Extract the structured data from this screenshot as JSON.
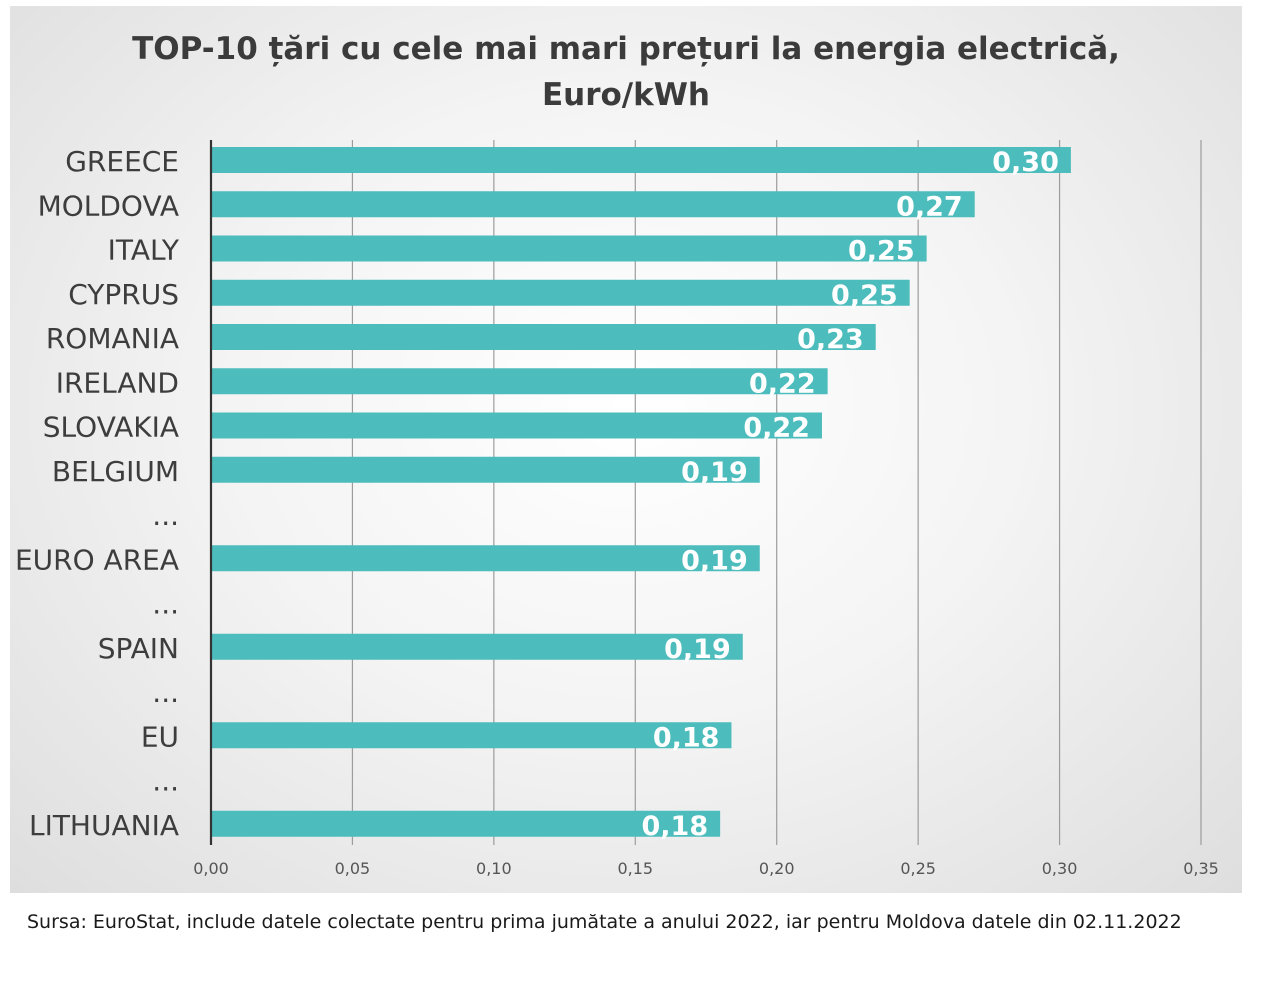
{
  "chart_data": {
    "type": "bar",
    "orientation": "horizontal",
    "title": "TOP-10 țări cu cele mai mari prețuri la energia electrică, Euro/kWh",
    "title_lines": [
      "TOP-10 țări cu cele mai mari prețuri la energia electrică,",
      "Euro/kWh"
    ],
    "categories": [
      "GREECE",
      "MOLDOVA",
      "ITALY",
      "CYPRUS",
      "ROMANIA",
      "IRELAND",
      "SLOVAKIA",
      "BELGIUM",
      "...",
      "EURO AREA",
      "...",
      "SPAIN",
      "...",
      "EU",
      "...",
      "LITHUANIA"
    ],
    "values": [
      0.304,
      0.27,
      0.253,
      0.247,
      0.235,
      0.218,
      0.216,
      0.194,
      null,
      0.194,
      null,
      0.188,
      null,
      0.184,
      null,
      0.18
    ],
    "data_labels": [
      "0,30",
      "0,27",
      "0,25",
      "0,25",
      "0,23",
      "0,22",
      "0,22",
      "0,19",
      "",
      "0,19",
      "",
      "0,19",
      "",
      "0,18",
      "",
      "0,18"
    ],
    "xlim": [
      0,
      0.35
    ],
    "xticks": [
      0,
      0.05,
      0.1,
      0.15,
      0.2,
      0.25,
      0.3,
      0.35
    ],
    "xtick_labels": [
      "0,00",
      "0,05",
      "0,10",
      "0,15",
      "0,20",
      "0,25",
      "0,30",
      "0,35"
    ],
    "xlabel": "",
    "ylabel": "",
    "grid": "vertical",
    "legend": "none",
    "bar_color": "#4dbcbc",
    "label_color": "#ffffff"
  },
  "footer": {
    "source": "Sursa: EuroStat, include datele colectate pentru prima jumătate a anului 2022, iar pentru Moldova datele din 02.11.2022"
  }
}
